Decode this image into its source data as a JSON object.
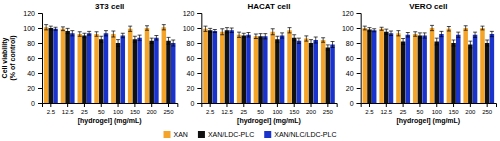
{
  "chart_data": [
    {
      "type": "bar",
      "title": "3T3 cell",
      "xlabel": "[hydrogel] (mg/mL)",
      "ylabel": "Cell viability\n(% of control)",
      "categories": [
        "2.5",
        "12.5",
        "25",
        "50",
        "100",
        "150",
        "200",
        "250"
      ],
      "series": [
        {
          "name": "XAN",
          "color": "#F5A42A",
          "values": [
            101,
            99,
            92,
            92,
            92,
            99,
            100,
            101
          ],
          "errors": [
            3.5,
            2.5,
            3.0,
            3.0,
            4.0,
            3.5,
            3.0,
            3.5
          ]
        },
        {
          "name": "XAN/LDC-PLC",
          "color": "#111111",
          "values": [
            100,
            96,
            90,
            85,
            80,
            85,
            83,
            83
          ],
          "errors": [
            2.5,
            3.5,
            3.0,
            4.0,
            4.5,
            4.0,
            3.5,
            4.5
          ]
        },
        {
          "name": "XAN/NLC/LDC-PLC",
          "color": "#1A33CC",
          "values": [
            99,
            93,
            93,
            93,
            90,
            87,
            87,
            80
          ],
          "errors": [
            2.0,
            3.5,
            2.5,
            3.5,
            3.0,
            3.5,
            3.0,
            4.0
          ]
        }
      ],
      "ylim": [
        0,
        120
      ],
      "yticks": [
        0,
        20,
        40,
        60,
        80,
        100,
        120
      ]
    },
    {
      "type": "bar",
      "title": "HACAT cell",
      "xlabel": "[hydrogel] (mg/mL)",
      "categories": [
        "2.5",
        "12.5",
        "25",
        "50",
        "100",
        "150",
        "200",
        "250"
      ],
      "series": [
        {
          "name": "XAN",
          "color": "#F5A42A",
          "values": [
            99,
            95,
            91,
            89,
            95,
            97,
            86,
            84
          ],
          "errors": [
            3.5,
            4.0,
            3.5,
            3.0,
            4.0,
            3.5,
            3.5,
            3.0
          ]
        },
        {
          "name": "XAN/LDC-PLC",
          "color": "#111111",
          "values": [
            97,
            97,
            90,
            89,
            85,
            87,
            80,
            74
          ],
          "errors": [
            2.5,
            3.5,
            3.0,
            3.5,
            4.0,
            4.0,
            4.5,
            3.5
          ]
        },
        {
          "name": "XAN/NLC/LDC-PLC",
          "color": "#1A33CC",
          "values": [
            96,
            97,
            91,
            89,
            90,
            83,
            84,
            78
          ],
          "errors": [
            2.0,
            3.0,
            3.0,
            3.5,
            3.5,
            3.5,
            4.0,
            4.0
          ]
        }
      ],
      "ylim": [
        0,
        120
      ],
      "yticks": [
        0,
        20,
        40,
        60,
        80,
        100,
        120
      ]
    },
    {
      "type": "bar",
      "title": "VERO cell",
      "xlabel": "[hydrogel] (mg/mL)",
      "categories": [
        "2.5",
        "12.5",
        "25",
        "50",
        "100",
        "150",
        "200",
        "250"
      ],
      "series": [
        {
          "name": "XAN",
          "color": "#F5A42A",
          "values": [
            100,
            99,
            93,
            92,
            100,
            99,
            100,
            100
          ],
          "errors": [
            2.5,
            2.0,
            3.5,
            3.0,
            3.5,
            3.0,
            3.0,
            2.5
          ]
        },
        {
          "name": "XAN/LDC-PLC",
          "color": "#111111",
          "values": [
            98,
            95,
            82,
            90,
            82,
            80,
            78,
            80
          ],
          "errors": [
            2.5,
            3.5,
            4.0,
            3.5,
            4.5,
            4.0,
            4.5,
            4.0
          ]
        },
        {
          "name": "XAN/NLC/LDC-PLC",
          "color": "#1A33CC",
          "values": [
            97,
            93,
            91,
            90,
            92,
            91,
            91,
            92
          ],
          "errors": [
            2.0,
            3.0,
            3.0,
            3.5,
            3.5,
            3.5,
            3.5,
            3.5
          ]
        }
      ],
      "ylim": [
        0,
        120
      ],
      "yticks": [
        0,
        20,
        40,
        60,
        80,
        100,
        120
      ]
    }
  ]
}
